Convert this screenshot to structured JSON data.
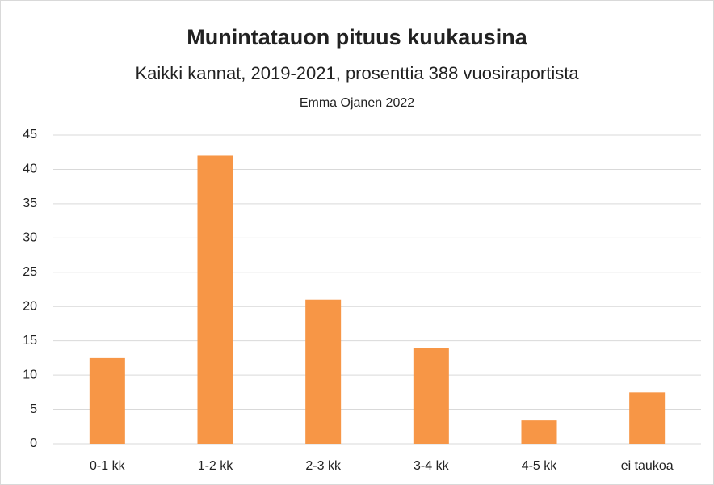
{
  "chart_data": {
    "type": "bar",
    "title": "Munintatauon pituus kuukausina",
    "subtitle": "Kaikki kannat, 2019-2021, prosenttia 388 vuosiraportista",
    "author": "Emma Ojanen 2022",
    "categories": [
      "0-1 kk",
      "1-2 kk",
      "2-3 kk",
      "3-4 kk",
      "4-5 kk",
      "ei taukoa"
    ],
    "values": [
      12.5,
      42.0,
      21.0,
      13.9,
      3.4,
      7.5
    ],
    "color": "#f79646",
    "ylim": [
      0,
      45
    ],
    "yticks": [
      0,
      5,
      10,
      15,
      20,
      25,
      30,
      35,
      40,
      45
    ],
    "grid": true
  }
}
